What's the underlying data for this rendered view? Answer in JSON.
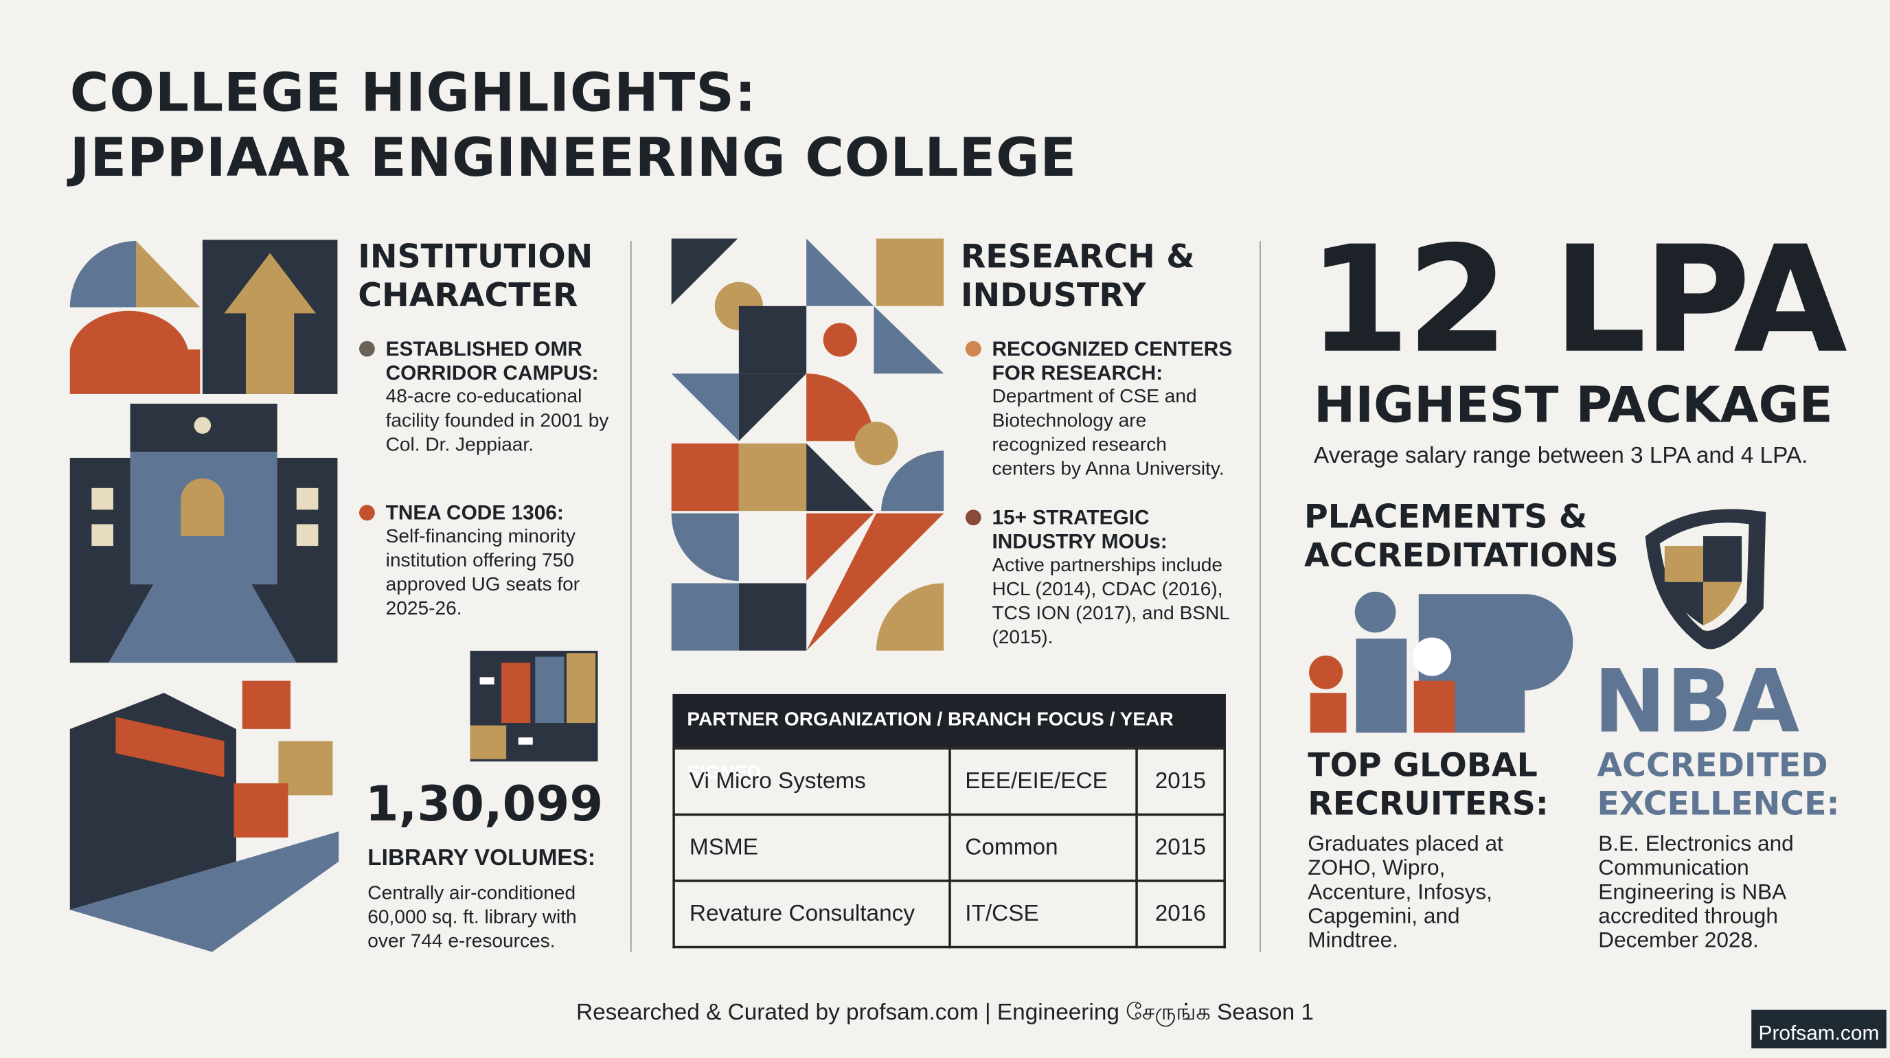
{
  "header": {
    "title_line1": "COLLEGE HIGHLIGHTS:",
    "title_line2": "JEPPIAAR ENGINEERING COLLEGE"
  },
  "institution": {
    "heading": "INSTITUTION CHARACTER",
    "items": [
      {
        "title": "ESTABLISHED OMR CORRIDOR CAMPUS:",
        "text": "48-acre co-educational facility founded in 2001 by Col. Dr. Jeppiaar."
      },
      {
        "title": "TNEA CODE 1306:",
        "text": "Self-financing minority institution offering 750 approved UG seats for 2025-26."
      }
    ],
    "library_count": "1,30,099",
    "library_label": "LIBRARY VOLUMES:",
    "library_text": "Centrally air-conditioned 60,000 sq. ft. library with over 744 e-resources."
  },
  "research": {
    "heading": "RESEARCH & INDUSTRY",
    "items": [
      {
        "title": "RECOGNIZED CENTERS FOR RESEARCH:",
        "text": "Department of CSE and Biotechnology are recognized research centers by Anna University."
      },
      {
        "title": "15+ STRATEGIC INDUSTRY MOUs:",
        "text": "Active partnerships include HCL (2014), CDAC (2016), TCS ION (2017), and BSNL (2015)."
      }
    ]
  },
  "table": {
    "header": "PARTNER ORGANIZATION / BRANCH FOCUS / YEAR SIGNED",
    "rows": [
      [
        "Vi Micro Systems",
        "EEE/EIE/ECE",
        "2015"
      ],
      [
        "MSME",
        "Common",
        "2015"
      ],
      [
        "Revature Consultancy",
        "IT/CSE",
        "2016"
      ]
    ]
  },
  "placements": {
    "package": "12 LPA",
    "package_label": "HIGHEST PACKAGE",
    "average": "Average salary range between 3 LPA and 4 LPA.",
    "heading": "PLACEMENTS & ACCREDITATIONS",
    "recruiters_title": "TOP GLOBAL RECRUITERS:",
    "recruiters_text": "Graduates placed at ZOHO, Wipro, Accenture, Infosys, Capgemini, and Mindtree.",
    "nba": "NBA",
    "nba_title": "ACCREDITED EXCELLENCE:",
    "nba_text": "B.E. Electronics and Communication Engineering is NBA accredited through December 2028."
  },
  "footer": {
    "credit": "Researched & Curated by profsam.com | Engineering சேருங்க Season 1",
    "logo": "Profsam.com"
  }
}
